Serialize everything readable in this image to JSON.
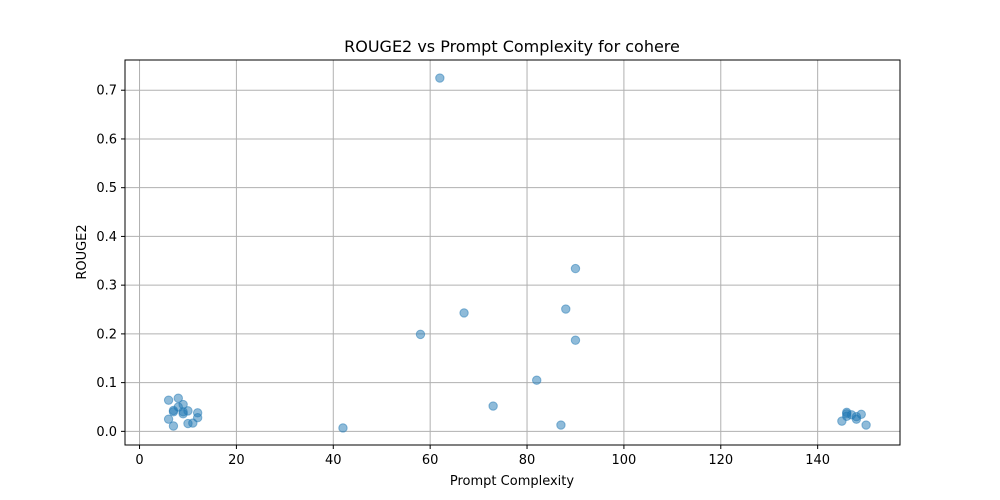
{
  "chart_data": {
    "type": "scatter",
    "title": "ROUGE2 vs Prompt Complexity for cohere",
    "xlabel": "Prompt Complexity",
    "ylabel": "ROUGE2",
    "xlim": [
      -3,
      157
    ],
    "ylim": [
      -0.028,
      0.762
    ],
    "xticks": [
      0,
      20,
      40,
      60,
      80,
      100,
      120,
      140
    ],
    "yticks": [
      0.0,
      0.1,
      0.2,
      0.3,
      0.4,
      0.5,
      0.6,
      0.7
    ],
    "grid": true,
    "point_color": "#1f77b4",
    "point_alpha": 0.5,
    "points": [
      {
        "x": 6,
        "y": 0.064
      },
      {
        "x": 6,
        "y": 0.025
      },
      {
        "x": 7,
        "y": 0.043
      },
      {
        "x": 7,
        "y": 0.04
      },
      {
        "x": 7,
        "y": 0.011
      },
      {
        "x": 8,
        "y": 0.068
      },
      {
        "x": 8,
        "y": 0.05
      },
      {
        "x": 9,
        "y": 0.055
      },
      {
        "x": 9,
        "y": 0.04
      },
      {
        "x": 9,
        "y": 0.036
      },
      {
        "x": 10,
        "y": 0.042
      },
      {
        "x": 10,
        "y": 0.016
      },
      {
        "x": 11,
        "y": 0.017
      },
      {
        "x": 12,
        "y": 0.038
      },
      {
        "x": 12,
        "y": 0.028
      },
      {
        "x": 42,
        "y": 0.007
      },
      {
        "x": 58,
        "y": 0.199
      },
      {
        "x": 62,
        "y": 0.725
      },
      {
        "x": 67,
        "y": 0.243
      },
      {
        "x": 73,
        "y": 0.052
      },
      {
        "x": 82,
        "y": 0.105
      },
      {
        "x": 87,
        "y": 0.013
      },
      {
        "x": 88,
        "y": 0.251
      },
      {
        "x": 90,
        "y": 0.334
      },
      {
        "x": 90,
        "y": 0.187
      },
      {
        "x": 145,
        "y": 0.021
      },
      {
        "x": 146,
        "y": 0.039
      },
      {
        "x": 146,
        "y": 0.036
      },
      {
        "x": 146,
        "y": 0.031
      },
      {
        "x": 147,
        "y": 0.034
      },
      {
        "x": 148,
        "y": 0.03
      },
      {
        "x": 148,
        "y": 0.025
      },
      {
        "x": 149,
        "y": 0.035
      },
      {
        "x": 150,
        "y": 0.013
      }
    ]
  }
}
